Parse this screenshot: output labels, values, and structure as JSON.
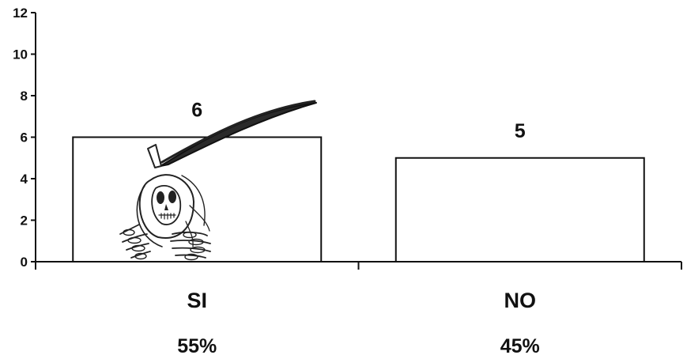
{
  "chart_data": {
    "type": "bar",
    "categories": [
      "SI",
      "NO"
    ],
    "values": [
      6,
      5
    ],
    "value_labels": [
      "6",
      "5"
    ],
    "percent_labels": [
      "55%",
      "45%"
    ],
    "ylim": [
      0,
      12
    ],
    "y_ticks": [
      "0",
      "2",
      "4",
      "6",
      "8",
      "10",
      "12"
    ],
    "title": "",
    "xlabel": "",
    "ylabel": "",
    "grid": false,
    "legend": "none",
    "colors": {
      "bar_fill": "#ffffff",
      "bar_stroke": "#111111",
      "axis": "#111111",
      "text": "#111111"
    }
  },
  "decoration": {
    "icon": "grim-reaper-scythe-icon"
  }
}
